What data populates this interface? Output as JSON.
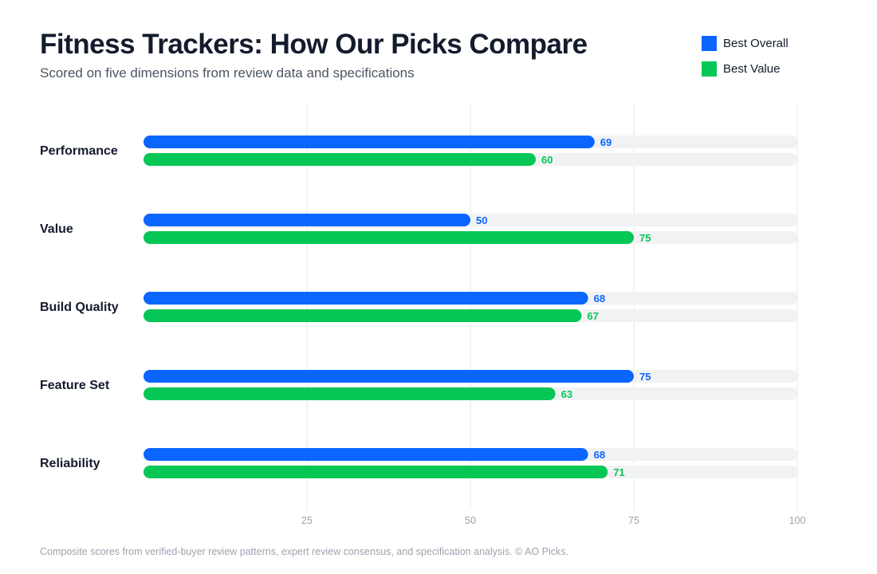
{
  "header": {
    "title": "Fitness Trackers: How Our Picks Compare",
    "subtitle": "Scored on five dimensions from review data and specifications"
  },
  "legend": [
    {
      "label": "Best Overall",
      "color": "#0a66ff"
    },
    {
      "label": "Best Value",
      "color": "#06c755"
    }
  ],
  "footer": "Composite scores from verified-buyer review patterns, expert review consensus, and specification analysis. © AO Picks.",
  "chart_data": {
    "type": "bar",
    "orientation": "horizontal",
    "categories": [
      "Performance",
      "Value",
      "Build Quality",
      "Feature Set",
      "Reliability"
    ],
    "series": [
      {
        "name": "Best Overall",
        "color": "#0a66ff",
        "values": [
          69,
          50,
          68,
          75,
          68
        ]
      },
      {
        "name": "Best Value",
        "color": "#06c755",
        "values": [
          60,
          75,
          67,
          63,
          71
        ]
      }
    ],
    "xlim": [
      0,
      100
    ],
    "xticks": [
      25,
      50,
      75,
      100
    ],
    "grid": true,
    "data_labels": true,
    "legend_position": "top-right"
  }
}
